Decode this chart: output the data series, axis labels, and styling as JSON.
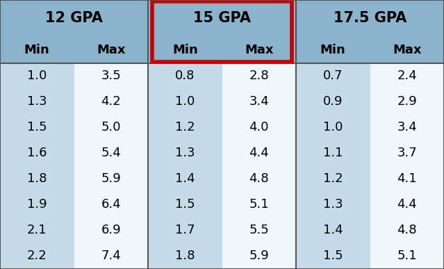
{
  "title_row": [
    "12 GPA",
    "15 GPA",
    "17.5 GPA"
  ],
  "subheader_row": [
    "Min",
    "Max",
    "Min",
    "Max",
    "Min",
    "Max"
  ],
  "data_rows": [
    [
      "1.0",
      "3.5",
      "0.8",
      "2.8",
      "0.7",
      "2.4"
    ],
    [
      "1.3",
      "4.2",
      "1.0",
      "3.4",
      "0.9",
      "2.9"
    ],
    [
      "1.5",
      "5.0",
      "1.2",
      "4.0",
      "1.0",
      "3.4"
    ],
    [
      "1.6",
      "5.4",
      "1.3",
      "4.4",
      "1.1",
      "3.7"
    ],
    [
      "1.8",
      "5.9",
      "1.4",
      "4.8",
      "1.2",
      "4.1"
    ],
    [
      "1.9",
      "6.4",
      "1.5",
      "5.1",
      "1.3",
      "4.4"
    ],
    [
      "2.1",
      "6.9",
      "1.7",
      "5.5",
      "1.4",
      "4.8"
    ],
    [
      "2.2",
      "7.4",
      "1.8",
      "5.9",
      "1.5",
      "5.1"
    ]
  ],
  "bg_header": "#8ab4cc",
  "bg_min_col": "#c5dce8",
  "bg_max_col": "#f0f7fa",
  "highlight_rect_color": "#cc0000",
  "text_color": "#000000",
  "divider_color": "#555555",
  "header_font_size": 15,
  "subheader_font_size": 13,
  "data_font_size": 13,
  "fig_width": 6.39,
  "fig_height": 3.87,
  "dpi": 100
}
